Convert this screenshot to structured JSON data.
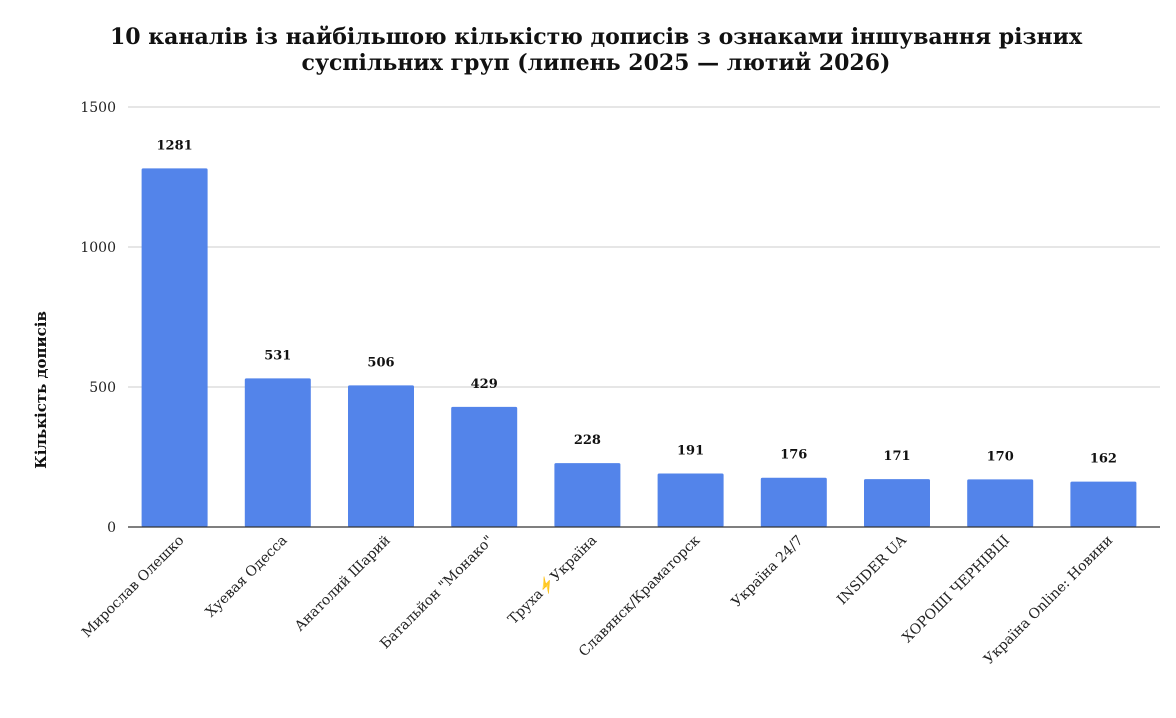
{
  "chart_data": {
    "type": "bar",
    "title_line1": "10 каналів із найбільшою кількістю дописів з ознаками іншування різних",
    "title_line2": "суспільних груп (липень 2025 — лютий 2026)",
    "ylabel": "Кількість дописів",
    "xlabel": "",
    "ylim": [
      0,
      1500
    ],
    "yticks": [
      0,
      500,
      1000,
      1500
    ],
    "grid": true,
    "categories": [
      "Мирослав Олешко",
      "Хуевая Одесса",
      "Анатолий Шарий",
      "Батальйон \"Монако\"",
      "Труха⚡️Україна",
      "Славянск/Краматорск",
      "Україна 24/7",
      "INSIDER UA",
      "ХОРОШІ ЧЕРНІВЦІ",
      "Україна Online: Новини"
    ],
    "values": [
      1281,
      531,
      506,
      429,
      228,
      191,
      176,
      171,
      170,
      162
    ],
    "bar_color": "#5384ea"
  }
}
